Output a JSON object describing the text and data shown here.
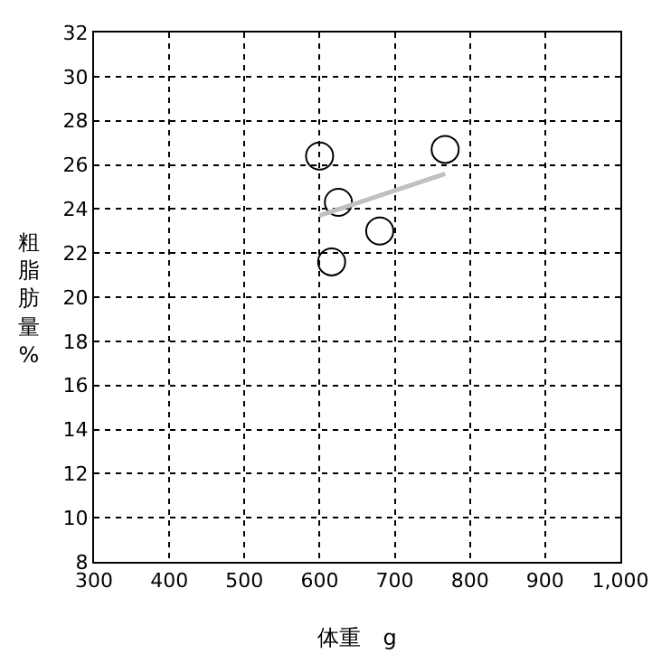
{
  "chart_data": {
    "type": "scatter",
    "xlabel": "体重　g",
    "ylabel": "粗脂肪量%",
    "grid": true,
    "series": [
      {
        "marker": "circle",
        "color": "#000000",
        "x": [
          600,
          625,
          616,
          680,
          767
        ],
        "values": [
          26.4,
          24.3,
          21.6,
          23.0,
          26.7
        ]
      },
      {
        "type": "line",
        "marker": "none",
        "color": "#c0c0c0",
        "x": [
          600,
          767
        ],
        "values": [
          23.7,
          25.6
        ]
      }
    ],
    "xlim": [
      300,
      1000
    ],
    "xticks": [
      300,
      400,
      500,
      600,
      700,
      800,
      900,
      {
        "value": 1000,
        "label": "1,000"
      }
    ],
    "ylim": [
      8,
      32
    ],
    "yticks": [
      8,
      10,
      12,
      14,
      16,
      18,
      20,
      22,
      24,
      26,
      28,
      30,
      32
    ]
  }
}
